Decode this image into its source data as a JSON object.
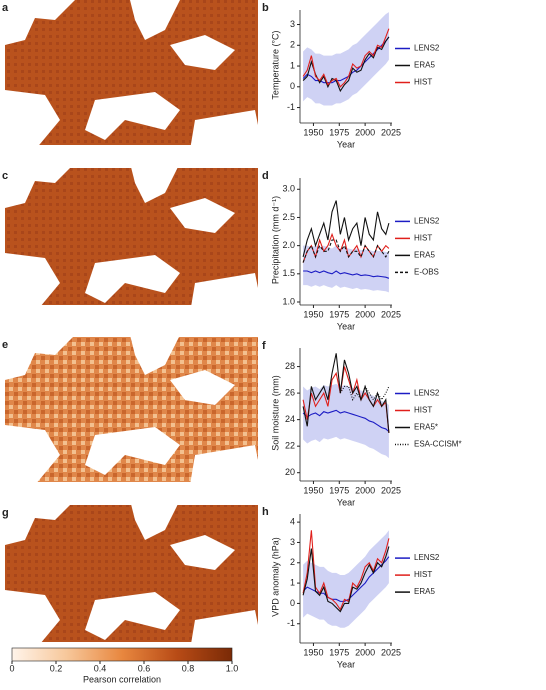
{
  "maps": [
    {
      "label": "a"
    },
    {
      "label": "c"
    },
    {
      "label": "e"
    },
    {
      "label": "g"
    }
  ],
  "colorbar": {
    "label": "Pearson correlation",
    "lim": [
      0,
      1
    ],
    "ticks": [
      0,
      0.2,
      0.4,
      0.6,
      0.8,
      {
        "value": 1,
        "label": "1.0"
      }
    ],
    "colors": [
      "#fff4ea",
      "#f7c79a",
      "#e8873f",
      "#b84b16",
      "#7a2a06"
    ]
  },
  "chart_data": [
    {
      "type": "line",
      "label": "b",
      "ylabel": "Temperature (°C)",
      "xlabel": "Year",
      "xlim": [
        1937,
        2026
      ],
      "xticks": [
        1950,
        1975,
        2000,
        2025
      ],
      "ylim": [
        -1.6,
        3.7
      ],
      "yticks": [
        -1,
        0,
        1,
        2,
        3
      ],
      "legend": "right",
      "x": [
        1940,
        1944,
        1948,
        1952,
        1956,
        1960,
        1964,
        1968,
        1972,
        1976,
        1980,
        1984,
        1988,
        1992,
        1996,
        2000,
        2004,
        2008,
        2012,
        2016,
        2020,
        2023
      ],
      "band": {
        "color": "#cfd2f4",
        "lower": [
          -0.7,
          -0.5,
          -0.6,
          -0.8,
          -0.8,
          -0.9,
          -0.9,
          -0.9,
          -0.8,
          -0.8,
          -0.7,
          -0.6,
          -0.4,
          -0.3,
          -0.1,
          0.1,
          0.3,
          0.5,
          0.7,
          0.9,
          1.1,
          1.3
        ],
        "upper": [
          1.7,
          1.9,
          1.8,
          1.6,
          1.6,
          1.5,
          1.5,
          1.5,
          1.6,
          1.6,
          1.7,
          1.8,
          2.0,
          2.1,
          2.3,
          2.5,
          2.7,
          2.9,
          3.1,
          3.3,
          3.5,
          3.6
        ]
      },
      "series": [
        {
          "name": "LENS2",
          "color": "#1c1cc4",
          "values": [
            0.4,
            0.6,
            0.5,
            0.3,
            0.3,
            0.2,
            0.2,
            0.2,
            0.3,
            0.3,
            0.4,
            0.5,
            0.7,
            0.8,
            1.0,
            1.2,
            1.4,
            1.6,
            1.8,
            2.0,
            2.2,
            2.4
          ]
        },
        {
          "name": "ERA5",
          "color": "#111111",
          "values": [
            0.3,
            0.5,
            1.2,
            0.6,
            0.2,
            0.5,
            0.0,
            0.4,
            0.3,
            -0.2,
            0.1,
            0.3,
            0.9,
            0.7,
            0.8,
            1.3,
            1.6,
            1.4,
            1.9,
            1.8,
            2.2,
            2.4
          ]
        },
        {
          "name": "HIST",
          "color": "#e01f1b",
          "values": [
            0.5,
            0.8,
            1.5,
            0.5,
            0.3,
            0.6,
            0.1,
            0.3,
            0.4,
            0.0,
            0.2,
            0.5,
            1.1,
            0.9,
            1.0,
            1.5,
            1.7,
            1.5,
            2.0,
            1.9,
            2.4,
            2.8
          ]
        }
      ]
    },
    {
      "type": "line",
      "label": "d",
      "ylabel": "Precipitation (mm d⁻¹)",
      "xlabel": "Year",
      "xlim": [
        1937,
        2026
      ],
      "xticks": [
        1950,
        1975,
        2000,
        2025
      ],
      "ylim": [
        1.0,
        3.2
      ],
      "yticks": [
        {
          "value": 1,
          "label": "1.0"
        },
        1.5,
        {
          "value": 2,
          "label": "2.0"
        },
        2.5,
        {
          "value": 3,
          "label": "3.0"
        }
      ],
      "legend": "right",
      "x": [
        1940,
        1944,
        1948,
        1952,
        1956,
        1960,
        1964,
        1968,
        1972,
        1976,
        1980,
        1984,
        1988,
        1992,
        1996,
        2000,
        2004,
        2008,
        2012,
        2016,
        2020,
        2023
      ],
      "band": {
        "color": "#cfd2f4",
        "lower": [
          1.3,
          1.3,
          1.27,
          1.3,
          1.27,
          1.3,
          1.27,
          1.25,
          1.3,
          1.25,
          1.27,
          1.25,
          1.23,
          1.25,
          1.22,
          1.23,
          1.22,
          1.2,
          1.21,
          1.2,
          1.19,
          1.17
        ],
        "upper": [
          2.0,
          2.0,
          1.97,
          2.0,
          1.97,
          2.0,
          1.97,
          1.95,
          2.0,
          1.95,
          1.97,
          1.95,
          1.93,
          1.95,
          1.92,
          1.93,
          1.92,
          1.9,
          1.91,
          1.9,
          1.89,
          1.87
        ]
      },
      "series": [
        {
          "name": "LENS2",
          "color": "#1c1cc4",
          "values": [
            1.55,
            1.55,
            1.52,
            1.55,
            1.52,
            1.55,
            1.52,
            1.5,
            1.55,
            1.5,
            1.52,
            1.5,
            1.48,
            1.5,
            1.47,
            1.48,
            1.47,
            1.45,
            1.46,
            1.45,
            1.44,
            1.42
          ]
        },
        {
          "name": "HIST",
          "color": "#e01f1b",
          "values": [
            1.7,
            1.9,
            2.0,
            1.8,
            2.1,
            1.9,
            2.0,
            2.2,
            2.0,
            1.9,
            2.1,
            1.8,
            1.9,
            2.0,
            1.8,
            2.0,
            1.9,
            1.8,
            2.0,
            1.9,
            2.0,
            1.95
          ]
        },
        {
          "name": "ERA5",
          "color": "#111111",
          "values": [
            1.8,
            2.1,
            2.3,
            2.0,
            2.2,
            2.4,
            2.1,
            2.6,
            2.8,
            2.2,
            2.5,
            2.1,
            2.3,
            2.4,
            2.0,
            2.5,
            2.2,
            2.1,
            2.6,
            2.3,
            2.2,
            2.4
          ]
        },
        {
          "name": "E-OBS",
          "color": "#111111",
          "dash": "dashed",
          "values": [
            1.7,
            1.9,
            2.0,
            1.8,
            2.0,
            1.9,
            1.9,
            2.1,
            2.1,
            1.9,
            2.0,
            1.8,
            1.9,
            1.9,
            1.8,
            2.0,
            1.9,
            1.8,
            2.0,
            1.9,
            1.8,
            1.9
          ]
        }
      ]
    },
    {
      "type": "line",
      "label": "f",
      "ylabel": "Soil moisture (mm)",
      "xlabel": "Year",
      "xlim": [
        1937,
        2026
      ],
      "xticks": [
        1950,
        1975,
        2000,
        2025
      ],
      "ylim": [
        19.6,
        29.4
      ],
      "yticks": [
        20,
        22,
        24,
        26,
        28
      ],
      "legend": "right",
      "x": [
        1940,
        1944,
        1948,
        1952,
        1956,
        1960,
        1964,
        1968,
        1972,
        1976,
        1980,
        1984,
        1988,
        1992,
        1996,
        2000,
        2004,
        2008,
        2012,
        2016,
        2020,
        2023
      ],
      "band": {
        "color": "#cfd2f4",
        "lower": [
          22.5,
          22.2,
          22.4,
          22.5,
          22.3,
          22.6,
          22.5,
          22.6,
          22.7,
          22.5,
          22.6,
          22.5,
          22.4,
          22.3,
          22.2,
          22.1,
          21.9,
          21.8,
          21.6,
          21.4,
          21.3,
          21.1
        ],
        "upper": [
          26.5,
          26.2,
          26.4,
          26.5,
          26.3,
          26.6,
          26.5,
          26.6,
          26.7,
          26.5,
          26.6,
          26.5,
          26.4,
          26.3,
          26.2,
          26.1,
          25.9,
          25.8,
          25.6,
          25.4,
          25.3,
          25.1
        ]
      },
      "series": [
        {
          "name": "LENS2",
          "color": "#1c1cc4",
          "values": [
            24.5,
            24.2,
            24.4,
            24.5,
            24.3,
            24.6,
            24.5,
            24.6,
            24.7,
            24.5,
            24.6,
            24.5,
            24.4,
            24.3,
            24.2,
            24.1,
            23.9,
            23.8,
            23.6,
            23.4,
            23.3,
            23.1
          ]
        },
        {
          "name": "HIST",
          "color": "#e01f1b",
          "values": [
            25.5,
            24,
            26,
            25,
            25.5,
            26,
            25,
            27,
            27.5,
            26,
            28,
            27,
            26,
            27,
            25.5,
            26,
            25.5,
            25,
            25.5,
            25,
            25.3,
            23
          ]
        },
        {
          "name": "ERA5*",
          "color": "#111111",
          "values": [
            25,
            23.5,
            26.5,
            25.5,
            26,
            26.5,
            25.5,
            27.5,
            29,
            26,
            28.5,
            27.5,
            26,
            26.5,
            25.5,
            26.5,
            25.5,
            25,
            26,
            25,
            25.5,
            23
          ]
        },
        {
          "name": "ESA-CCISM*",
          "color": "#111111",
          "dash": "dotted",
          "values": [
            null,
            null,
            null,
            null,
            null,
            null,
            null,
            null,
            null,
            26,
            26.5,
            26.5,
            25.5,
            26,
            25.5,
            26.5,
            26,
            25.5,
            26,
            25.5,
            26,
            26.5
          ]
        }
      ]
    },
    {
      "type": "line",
      "label": "h",
      "ylabel": "VPD anomaly (hPa)",
      "xlabel": "Year",
      "xlim": [
        1937,
        2026
      ],
      "xticks": [
        1950,
        1975,
        2000,
        2025
      ],
      "ylim": [
        -1.8,
        4.4
      ],
      "yticks": [
        -1,
        0,
        1,
        2,
        3,
        4
      ],
      "legend": "right",
      "x": [
        1940,
        1944,
        1948,
        1952,
        1956,
        1960,
        1964,
        1968,
        1972,
        1976,
        1980,
        1984,
        1988,
        1992,
        1996,
        2000,
        2004,
        2008,
        2012,
        2016,
        2020,
        2023
      ],
      "band": {
        "color": "#cfd2f4",
        "lower": [
          -0.7,
          -0.5,
          -0.6,
          -0.7,
          -0.8,
          -0.8,
          -1.0,
          -1.1,
          -1.1,
          -1.2,
          -1.2,
          -1.1,
          -0.9,
          -0.7,
          -0.5,
          -0.3,
          0.0,
          0.2,
          0.4,
          0.6,
          0.8,
          1.0
        ],
        "upper": [
          1.9,
          2.1,
          2.0,
          1.9,
          1.8,
          1.8,
          1.6,
          1.5,
          1.5,
          1.4,
          1.4,
          1.5,
          1.7,
          1.9,
          2.1,
          2.3,
          2.6,
          2.8,
          3.0,
          3.2,
          3.4,
          3.6
        ]
      },
      "series": [
        {
          "name": "LENS2",
          "color": "#1c1cc4",
          "values": [
            0.6,
            0.8,
            0.7,
            0.6,
            0.5,
            0.5,
            0.3,
            0.2,
            0.2,
            0.1,
            0.1,
            0.2,
            0.4,
            0.6,
            0.8,
            1.0,
            1.3,
            1.5,
            1.7,
            1.9,
            2.1,
            2.3
          ]
        },
        {
          "name": "HIST",
          "color": "#e01f1b",
          "values": [
            0.5,
            1.5,
            3.6,
            0.8,
            0.5,
            1.0,
            0.3,
            0.2,
            0.0,
            -0.3,
            0.2,
            0.1,
            1.0,
            0.8,
            1.2,
            1.8,
            2.0,
            1.6,
            2.2,
            2.0,
            2.6,
            3.2
          ]
        },
        {
          "name": "ERA5",
          "color": "#111111",
          "values": [
            0.4,
            1.2,
            2.7,
            0.6,
            0.4,
            0.8,
            0.1,
            0.0,
            -0.2,
            -0.4,
            0.0,
            0.0,
            0.8,
            0.7,
            1.0,
            1.5,
            1.9,
            1.5,
            2.0,
            1.8,
            2.3,
            2.8
          ]
        }
      ]
    }
  ]
}
